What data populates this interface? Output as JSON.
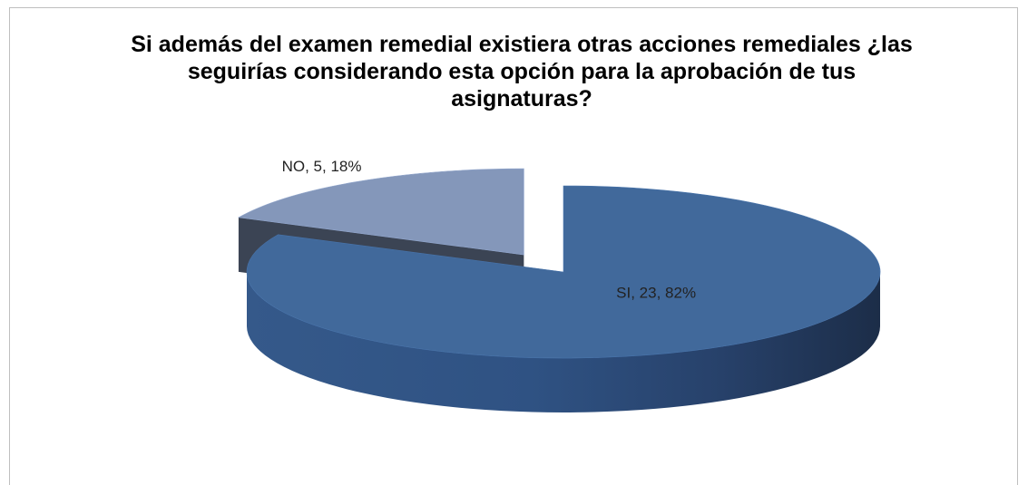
{
  "chart_data": {
    "type": "pie3d",
    "title": "Si además del examen remedial existiera otras acciones remediales ¿las seguirías considerando esta opción para la aprobación de tus asignaturas?",
    "categories": [
      "SI",
      "NO"
    ],
    "values": [
      23,
      5
    ],
    "value_labels": [
      "SI, 23, 82%",
      "NO, 5, 18%"
    ],
    "colors": [
      "#41699b",
      "#8497ba"
    ],
    "exploded": [
      false,
      true
    ]
  }
}
